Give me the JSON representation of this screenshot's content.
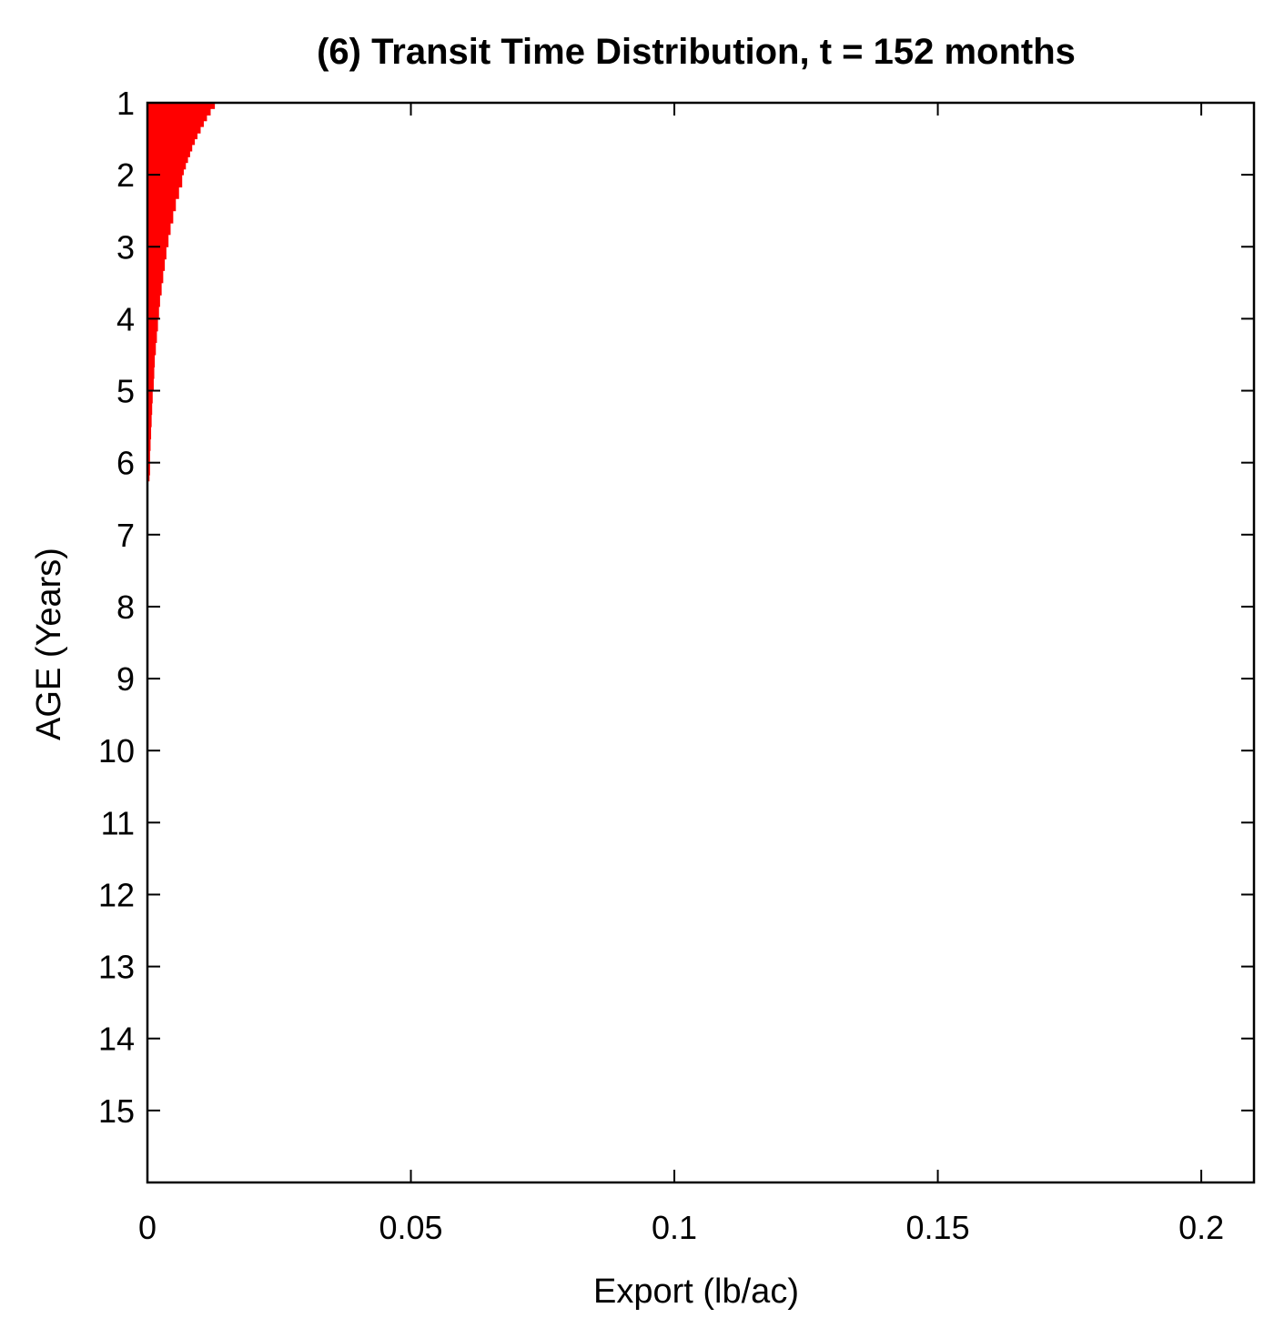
{
  "chart_data": {
    "type": "bar",
    "orientation": "horizontal",
    "title": "(6) Transit Time Distribution, t = 152 months",
    "xlabel": "Export (lb/ac)",
    "ylabel": "AGE (Years)",
    "xlim": [
      0,
      0.21
    ],
    "ylim": [
      1,
      16
    ],
    "y_reversed": true,
    "x_ticks": [
      0,
      0.05,
      0.1,
      0.15,
      0.2
    ],
    "x_tick_labels": [
      "0",
      "0.05",
      "0.1",
      "0.15",
      "0.2"
    ],
    "y_ticks": [
      1,
      2,
      3,
      4,
      5,
      6,
      7,
      8,
      9,
      10,
      11,
      12,
      13,
      14,
      15
    ],
    "y_tick_labels": [
      "1",
      "2",
      "3",
      "4",
      "5",
      "6",
      "7",
      "8",
      "9",
      "10",
      "11",
      "12",
      "13",
      "14",
      "15"
    ],
    "bar_color": "#ff0000",
    "bin_width_years": 0.0833,
    "series": [
      {
        "age_years": [
          1.0,
          1.08,
          1.17,
          1.25,
          1.33,
          1.42,
          1.5,
          1.58,
          1.67,
          1.75,
          1.83,
          1.92,
          2.0,
          2.17,
          2.33,
          2.5,
          2.67,
          2.83,
          3.0,
          3.17,
          3.33,
          3.5,
          3.67,
          3.83,
          4.0,
          4.17,
          4.33,
          4.5,
          4.67,
          4.83,
          5.0,
          5.17,
          5.33,
          5.5,
          5.67,
          5.83,
          6.0,
          6.17
        ],
        "export": [
          0.0128,
          0.012,
          0.0113,
          0.0107,
          0.0101,
          0.0095,
          0.009,
          0.0085,
          0.0081,
          0.0077,
          0.0073,
          0.0069,
          0.0066,
          0.006,
          0.0054,
          0.0049,
          0.0044,
          0.004,
          0.0036,
          0.0033,
          0.003,
          0.0027,
          0.0024,
          0.0022,
          0.002,
          0.0018,
          0.0016,
          0.0014,
          0.0013,
          0.0012,
          0.001,
          0.0009,
          0.0008,
          0.0007,
          0.0006,
          0.0005,
          0.0005,
          0.0004
        ]
      }
    ]
  }
}
